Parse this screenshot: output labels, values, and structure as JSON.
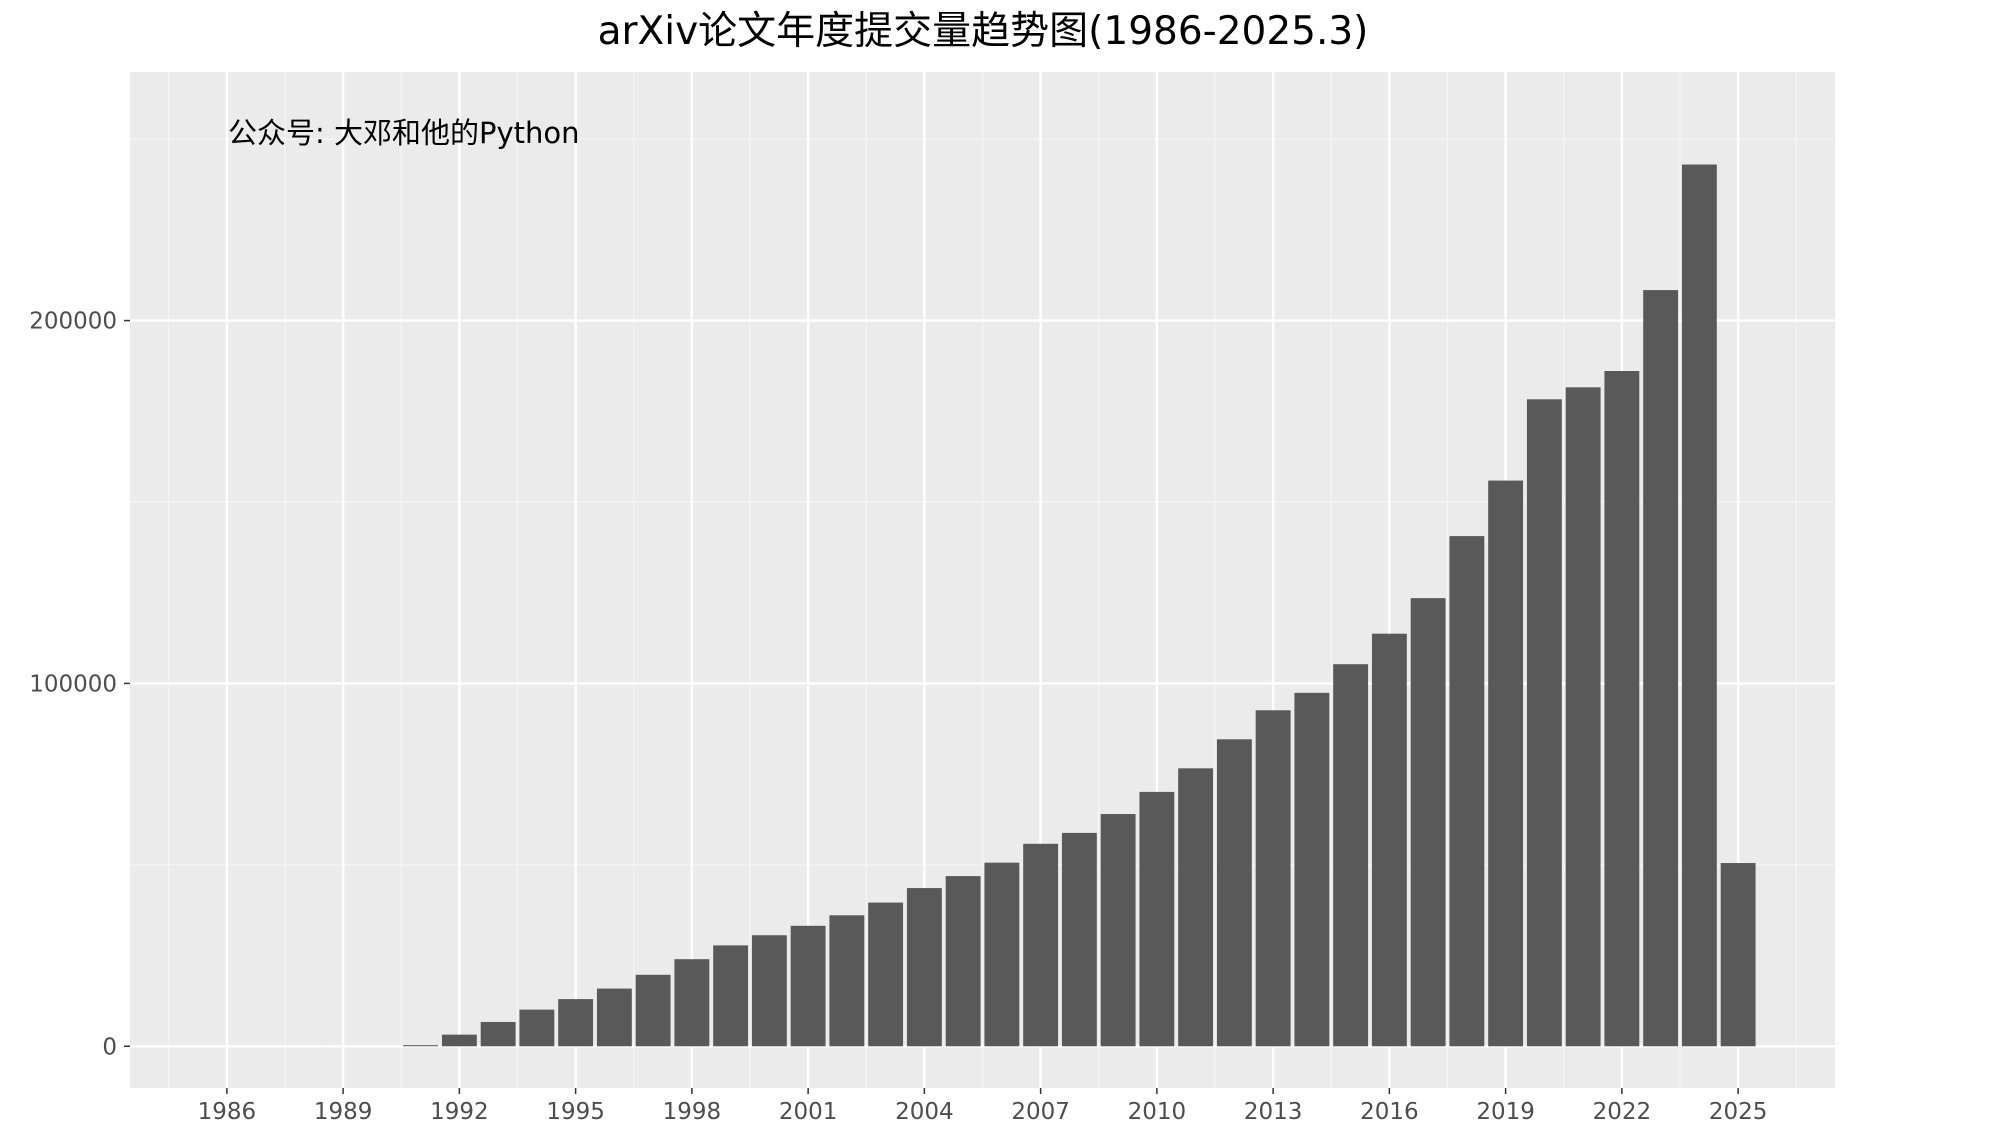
{
  "chart_data": {
    "type": "bar",
    "title": "arXiv论文年度提交量趋势图(1986-2025.3)",
    "annotation": "公众号: 大邓和他的Python",
    "xlabel": "",
    "ylabel": "",
    "x": [
      1986,
      1987,
      1988,
      1989,
      1990,
      1991,
      1992,
      1993,
      1994,
      1995,
      1996,
      1997,
      1998,
      1999,
      2000,
      2001,
      2002,
      2003,
      2004,
      2005,
      2006,
      2007,
      2008,
      2009,
      2010,
      2011,
      2012,
      2013,
      2014,
      2015,
      2016,
      2017,
      2018,
      2019,
      2020,
      2021,
      2022,
      2023,
      2024,
      2025
    ],
    "values": [
      1,
      0,
      1,
      2,
      3,
      300,
      3200,
      6700,
      10100,
      13000,
      15900,
      19700,
      24000,
      27800,
      30600,
      33200,
      36100,
      39600,
      43600,
      46900,
      50600,
      55800,
      58800,
      64000,
      70100,
      76600,
      84600,
      92600,
      97400,
      105300,
      113700,
      123500,
      140600,
      155900,
      178300,
      181600,
      186100,
      208400,
      243000,
      50500
    ],
    "x_ticks": [
      1986,
      1989,
      1992,
      1995,
      1998,
      2001,
      2004,
      2007,
      2010,
      2013,
      2016,
      2019,
      2022,
      2025
    ],
    "x_tick_labels": [
      "1986",
      "1989",
      "1992",
      "1995",
      "1998",
      "2001",
      "2004",
      "2007",
      "2010",
      "2013",
      "2016",
      "2019",
      "2022",
      "2025"
    ],
    "y_ticks": [
      0,
      100000,
      200000
    ],
    "y_tick_labels": [
      "0",
      "100000",
      "200000"
    ],
    "xlim": [
      1983.5,
      2027.5
    ],
    "ylim": [
      -11500,
      268500
    ],
    "grid": true,
    "legend": "none",
    "colors": {
      "bar": "#595959",
      "panel_background": "#ebebeb",
      "grid_major": "#ffffff",
      "grid_minor": "#f5f5f5",
      "tick_text": "#4d4d4d",
      "tick_mark": "#333333",
      "title_text": "#000000"
    }
  }
}
